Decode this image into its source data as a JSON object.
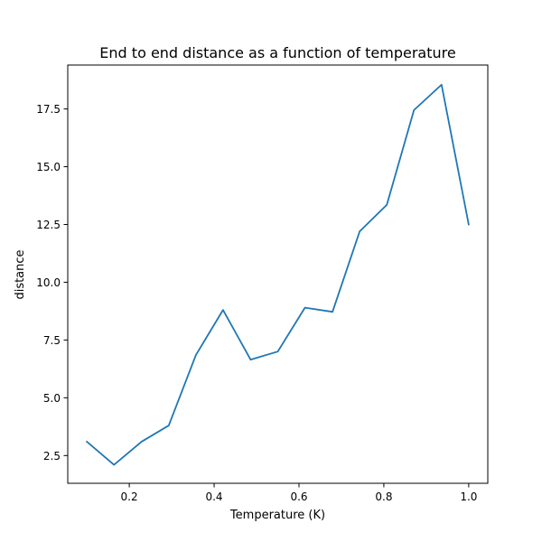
{
  "chart_data": {
    "type": "line",
    "title": "End to end distance as a function of temperature",
    "xlabel": "Temperature (K)",
    "ylabel": "distance",
    "xlim": [
      0.055,
      1.045
    ],
    "ylim": [
      1.3,
      19.4
    ],
    "xticks": [
      0.2,
      0.4,
      0.6,
      0.8,
      1.0
    ],
    "xtick_labels": [
      "0.2",
      "0.4",
      "0.6",
      "0.8",
      "1.0"
    ],
    "yticks": [
      2.5,
      5.0,
      7.5,
      10.0,
      12.5,
      15.0,
      17.5
    ],
    "ytick_labels": [
      "2.5",
      "5.0",
      "7.5",
      "10.0",
      "12.5",
      "15.0",
      "17.5"
    ],
    "grid": false,
    "series": [
      {
        "color": "#1f77b4",
        "x": [
          0.1,
          0.164,
          0.229,
          0.293,
          0.357,
          0.421,
          0.486,
          0.55,
          0.614,
          0.679,
          0.743,
          0.807,
          0.871,
          0.936,
          1.0
        ],
        "y": [
          3.1,
          2.1,
          3.1,
          3.8,
          6.85,
          8.8,
          6.65,
          7.0,
          8.9,
          8.72,
          12.2,
          13.35,
          17.45,
          18.55,
          12.5
        ]
      }
    ]
  }
}
